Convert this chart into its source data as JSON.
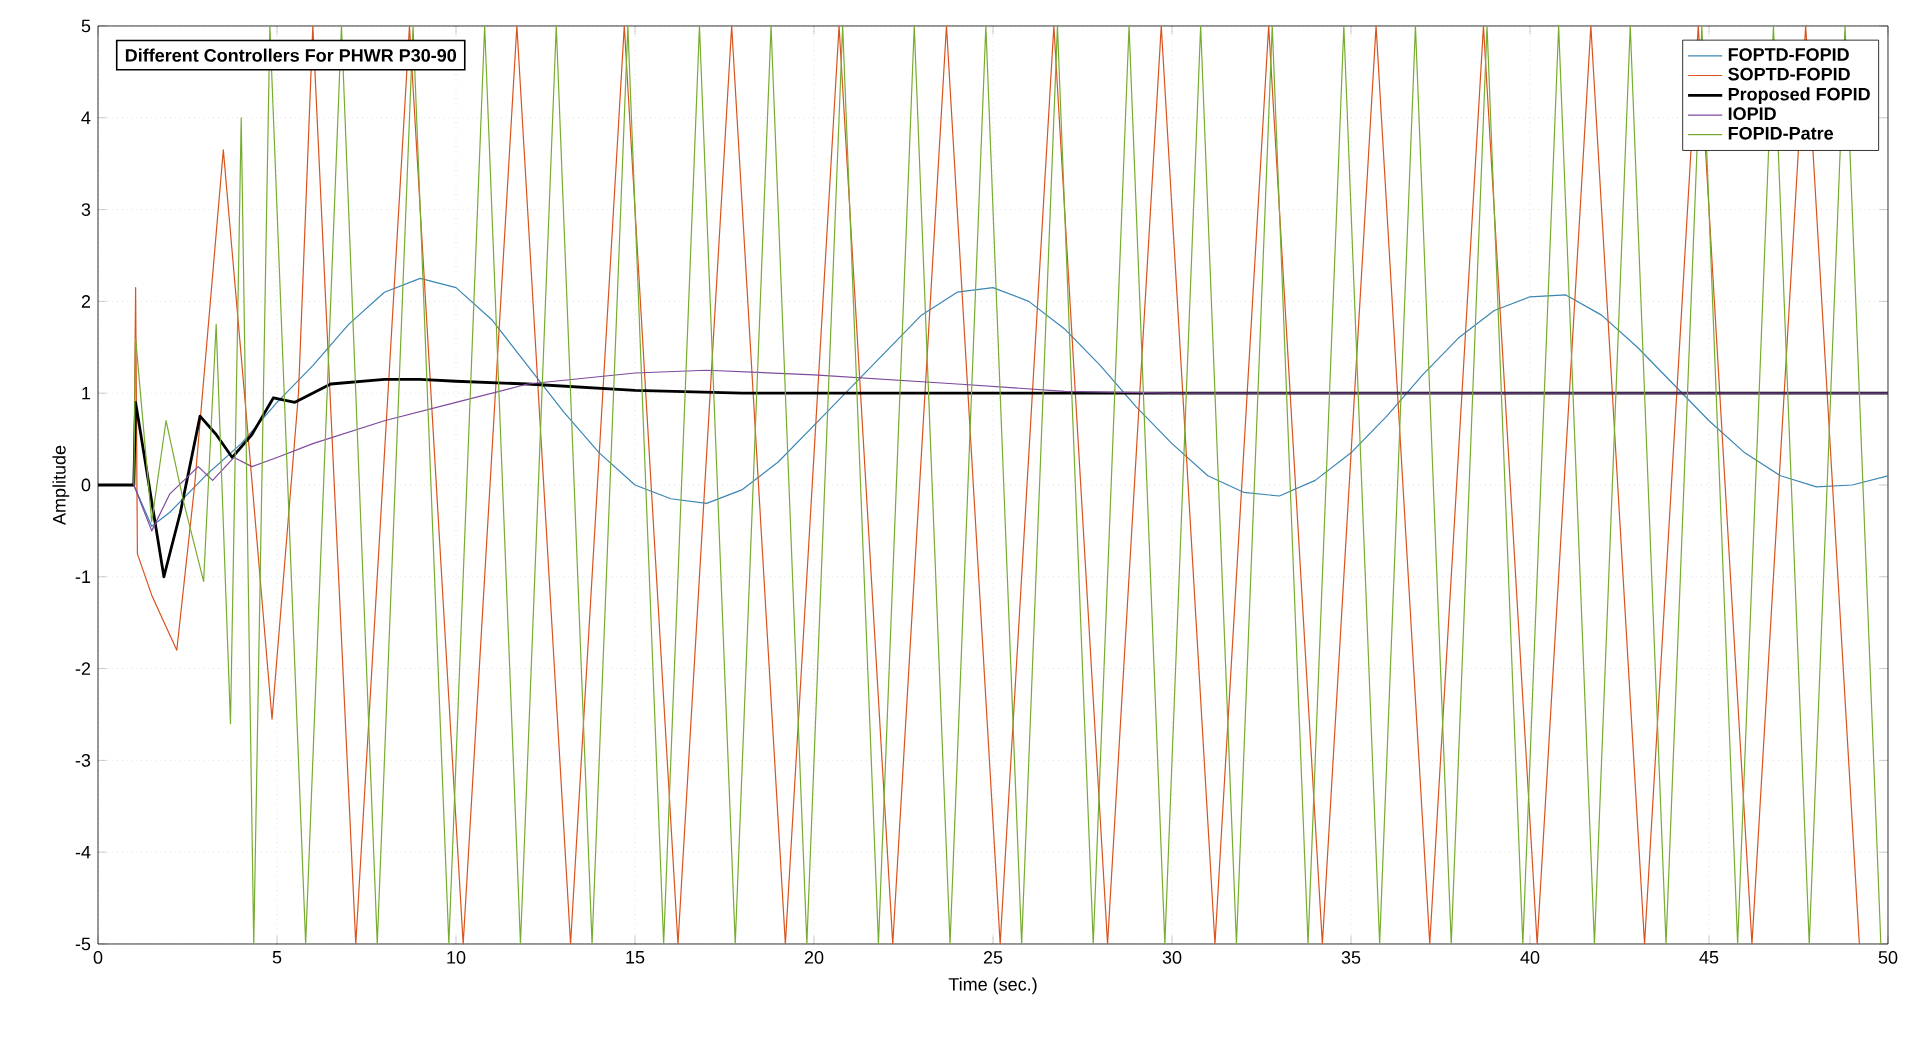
{
  "chart_data": {
    "type": "line",
    "title": "Different Controllers For PHWR P30-90",
    "xlabel": "Time (sec.)",
    "ylabel": "Amplitude",
    "xlim": [
      0,
      50
    ],
    "ylim": [
      -5,
      5
    ],
    "xticks": [
      0,
      5,
      10,
      15,
      20,
      25,
      30,
      35,
      40,
      45,
      50
    ],
    "yticks": [
      -5,
      -4,
      -3,
      -2,
      -1,
      0,
      1,
      2,
      3,
      4,
      5
    ],
    "grid": true,
    "legend": "top right",
    "marker": "none",
    "line_style": "solid",
    "series": [
      {
        "name": "FOPTD-FOPID",
        "color": "#3a86b5",
        "x": [
          1,
          1.5,
          2,
          3,
          4,
          5,
          6,
          7,
          8,
          9,
          10,
          11,
          12,
          13,
          14,
          15,
          16,
          17,
          18,
          19,
          20,
          21,
          22,
          23,
          24,
          25,
          26,
          27,
          28,
          29,
          30,
          31,
          32,
          33,
          34,
          35,
          36,
          37,
          38,
          39,
          40,
          41,
          42,
          43,
          44,
          45,
          46,
          47,
          48,
          49,
          50
        ],
        "values": [
          0,
          -0.45,
          -0.3,
          0.1,
          0.45,
          0.9,
          1.3,
          1.75,
          2.1,
          2.25,
          2.15,
          1.8,
          1.3,
          0.8,
          0.35,
          0.0,
          -0.15,
          -0.2,
          -0.05,
          0.25,
          0.65,
          1.05,
          1.45,
          1.85,
          2.1,
          2.15,
          2.0,
          1.7,
          1.3,
          0.85,
          0.45,
          0.1,
          -0.08,
          -0.12,
          0.05,
          0.35,
          0.75,
          1.2,
          1.6,
          1.9,
          2.05,
          2.07,
          1.85,
          1.5,
          1.1,
          0.7,
          0.35,
          0.1,
          -0.02,
          0.0,
          0.1
        ]
      },
      {
        "name": "SOPTD-FOPID",
        "color": "#d9531e",
        "x": [
          1,
          1.05,
          1.1,
          1.5,
          2.2,
          2.7,
          3.5,
          4.2,
          4.86,
          5.6,
          6.0,
          7.2,
          8.7,
          10.2,
          11.7,
          13.2,
          14.7,
          16.2,
          17.7,
          19.2,
          20.7,
          22.2,
          23.7,
          25.2,
          26.7,
          28.2,
          29.7,
          31.2,
          32.7,
          34.2,
          35.7,
          37.2,
          38.7,
          40.2,
          41.7,
          43.2,
          44.7,
          46.2,
          47.7,
          49.2
        ],
        "values": [
          0,
          2.15,
          -0.75,
          -1.2,
          -1.8,
          0,
          3.65,
          0.5,
          -2.55,
          1,
          5,
          -5,
          5,
          -5,
          5,
          -5,
          5,
          -5,
          5,
          -5,
          5,
          -5,
          5,
          -5,
          5,
          -5,
          5,
          -5,
          5,
          -5,
          5,
          -5,
          5,
          -5,
          5,
          -5,
          5,
          -5,
          5,
          -5
        ]
      },
      {
        "name": "Proposed FOPID",
        "color": "#000000",
        "x": [
          0,
          1,
          1.05,
          1.3,
          1.84,
          2.3,
          2.85,
          3.3,
          3.75,
          4.3,
          4.9,
          5.5,
          6.5,
          8,
          9,
          10,
          12,
          15,
          18,
          20,
          30,
          40,
          50
        ],
        "values": [
          0,
          0,
          0.9,
          0.3,
          -1,
          -0.3,
          0.75,
          0.55,
          0.3,
          0.55,
          0.95,
          0.9,
          1.1,
          1.15,
          1.15,
          1.13,
          1.1,
          1.03,
          1.0,
          1.0,
          1.0,
          1.0,
          1.0
        ]
      },
      {
        "name": "IOPID",
        "color": "#7e4a9e",
        "x": [
          1,
          1.5,
          2,
          2.8,
          3.2,
          3.8,
          4.3,
          5,
          6,
          8,
          10,
          12,
          15,
          17,
          20,
          24,
          27,
          30,
          40,
          50
        ],
        "values": [
          0,
          -0.5,
          -0.1,
          0.2,
          0.05,
          0.3,
          0.2,
          0.3,
          0.45,
          0.7,
          0.9,
          1.1,
          1.22,
          1.25,
          1.2,
          1.1,
          1.02,
          1.0,
          1.0,
          1.0
        ]
      },
      {
        "name": "FOPID-Patre",
        "color": "#77ac30",
        "x": [
          1,
          1.05,
          1.5,
          1.9,
          2.4,
          2.95,
          3.3,
          3.7,
          4.0,
          4.35,
          4.8,
          5.8,
          6.8,
          7.8,
          8.8,
          9.8,
          10.8,
          11.8,
          12.8,
          13.8,
          14.8,
          15.8,
          16.8,
          17.8,
          18.8,
          19.8,
          20.8,
          21.8,
          22.8,
          23.8,
          24.8,
          25.8,
          26.8,
          27.8,
          28.8,
          29.8,
          30.8,
          31.8,
          32.8,
          33.8,
          34.8,
          35.8,
          36.8,
          37.8,
          38.8,
          39.8,
          40.8,
          41.8,
          42.8,
          43.8,
          44.8,
          45.8,
          46.8,
          47.8,
          48.8,
          49.8
        ],
        "values": [
          0,
          1.6,
          -0.4,
          0.7,
          -0.2,
          -1.05,
          1.75,
          -2.6,
          4,
          -5,
          5,
          -5,
          5,
          -5,
          5,
          -5,
          5,
          -5,
          5,
          -5,
          5,
          -5,
          5,
          -5,
          5,
          -5,
          5,
          -5,
          5,
          -5,
          5,
          -5,
          5,
          -5,
          5,
          -5,
          5,
          -5,
          5,
          -5,
          5,
          -5,
          5,
          -5,
          5,
          -5,
          5,
          -5,
          5,
          -5,
          5,
          -5,
          5,
          -5,
          5,
          -5
        ]
      }
    ]
  }
}
